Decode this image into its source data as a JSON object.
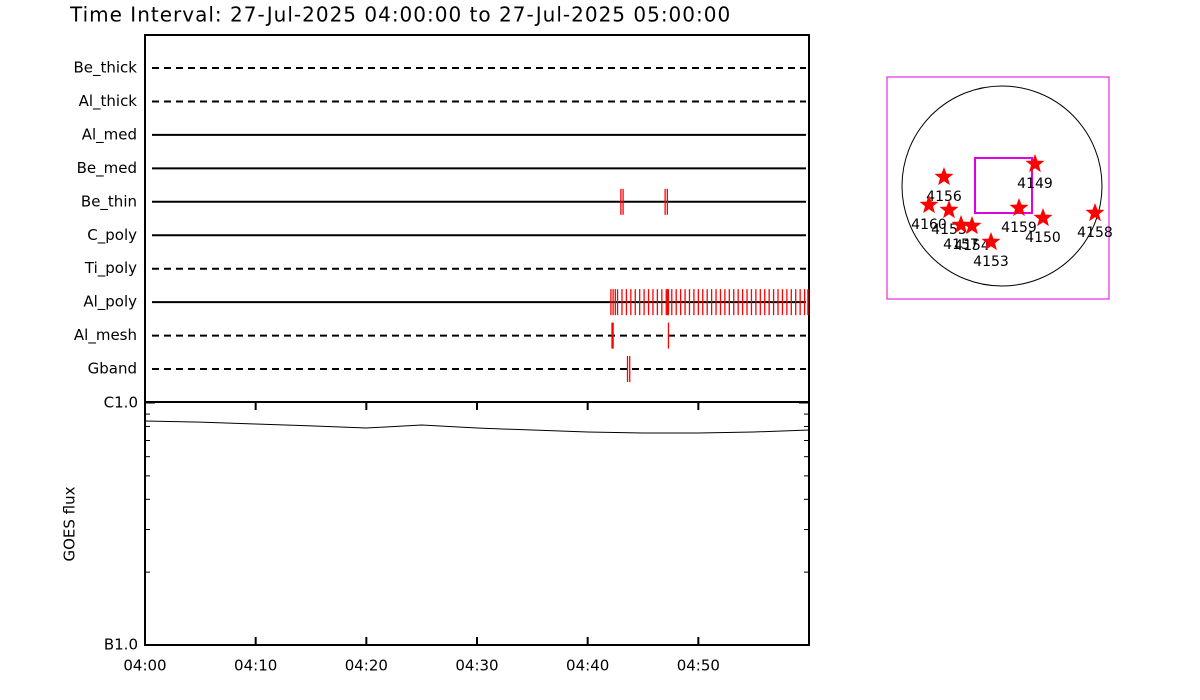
{
  "chart_data": [
    {
      "type": "timeline",
      "title": "Time Interval: 27-Jul-2025 04:00:00 to 27-Jul-2025 05:00:00",
      "mark_color": "#ff0000",
      "rows": [
        {
          "name": "Be_thick",
          "dashed": true,
          "times": []
        },
        {
          "name": "Al_thick",
          "dashed": true,
          "times": []
        },
        {
          "name": "Al_med",
          "dashed": false,
          "times": []
        },
        {
          "name": "Be_med",
          "dashed": false,
          "times": []
        },
        {
          "name": "Be_thin",
          "dashed": false,
          "times": [
            43.0,
            43.2,
            47.0,
            47.2
          ]
        },
        {
          "name": "C_poly",
          "dashed": false,
          "times": []
        },
        {
          "name": "Ti_poly",
          "dashed": true,
          "times": []
        },
        {
          "name": "Al_poly",
          "dashed": false,
          "times": [
            42.1,
            42.3,
            42.5,
            42.7,
            43.1,
            43.5,
            43.9,
            44.3,
            44.7,
            45.1,
            45.5,
            45.9,
            46.3,
            46.7,
            47.1,
            47.2,
            47.3,
            47.6,
            48.0,
            48.4,
            48.8,
            49.2,
            49.6,
            50.0,
            50.4,
            50.8,
            51.2,
            51.6,
            52.0,
            52.4,
            52.8,
            53.2,
            53.6,
            54.0,
            54.4,
            54.8,
            55.2,
            55.6,
            56.0,
            56.4,
            56.8,
            57.2,
            57.6,
            58.0,
            58.4,
            58.8,
            59.2,
            59.6,
            59.9
          ]
        },
        {
          "name": "Al_mesh",
          "dashed": true,
          "times": [
            42.2,
            42.3,
            47.3
          ]
        },
        {
          "name": "Gband",
          "dashed": true,
          "times": [
            43.6,
            43.8
          ]
        }
      ]
    },
    {
      "type": "line",
      "ylabel": "GOES flux",
      "log_scale": true,
      "color": "#000000",
      "x": [
        0,
        5,
        10,
        15,
        20,
        25,
        30,
        35,
        40,
        45,
        50,
        55,
        60
      ],
      "values": [
        8.43e-07,
        8.34e-07,
        8.19e-07,
        8.04e-07,
        7.88e-07,
        8.11e-07,
        7.88e-07,
        7.73e-07,
        7.59e-07,
        7.52e-07,
        7.52e-07,
        7.59e-07,
        7.73e-07
      ],
      "xlim": [
        0,
        60
      ],
      "xticks": [
        {
          "value": 0,
          "label": "04:00"
        },
        {
          "value": 10,
          "label": "04:10"
        },
        {
          "value": 20,
          "label": "04:20"
        },
        {
          "value": 30,
          "label": "04:30"
        },
        {
          "value": 40,
          "label": "04:40"
        },
        {
          "value": 50,
          "label": "04:50"
        }
      ],
      "ylim": [
        1e-07,
        1e-06
      ],
      "yticks": [
        {
          "value": 1e-06,
          "label": "C1.0"
        },
        {
          "value": 1e-07,
          "label": "B1.0"
        }
      ],
      "yminorticks": [
        2e-07,
        3e-07,
        4e-07,
        5e-07,
        6e-07,
        7e-07,
        8e-07,
        9e-07
      ]
    },
    {
      "type": "scatter",
      "color": "#ff0000",
      "fov_color": "#e000e0",
      "xlim": [
        -1.15,
        1.07
      ],
      "ylim": [
        -1.13,
        1.09
      ],
      "fov": {
        "x": [
          -0.27,
          0.3
        ],
        "y": [
          -0.27,
          0.28
        ]
      },
      "points": [
        {
          "name": "4149",
          "x": 0.33,
          "y": 0.22
        },
        {
          "name": "4156",
          "x": -0.58,
          "y": 0.09
        },
        {
          "name": "4160",
          "x": -0.73,
          "y": -0.19
        },
        {
          "name": "4155",
          "x": -0.53,
          "y": -0.24
        },
        {
          "name": "4157",
          "x": -0.41,
          "y": -0.39
        },
        {
          "name": "4154",
          "x": -0.3,
          "y": -0.4
        },
        {
          "name": "4153",
          "x": -0.11,
          "y": -0.56
        },
        {
          "name": "4159",
          "x": 0.17,
          "y": -0.22
        },
        {
          "name": "4150",
          "x": 0.41,
          "y": -0.32
        },
        {
          "name": "4158",
          "x": 0.93,
          "y": -0.27
        }
      ]
    }
  ]
}
